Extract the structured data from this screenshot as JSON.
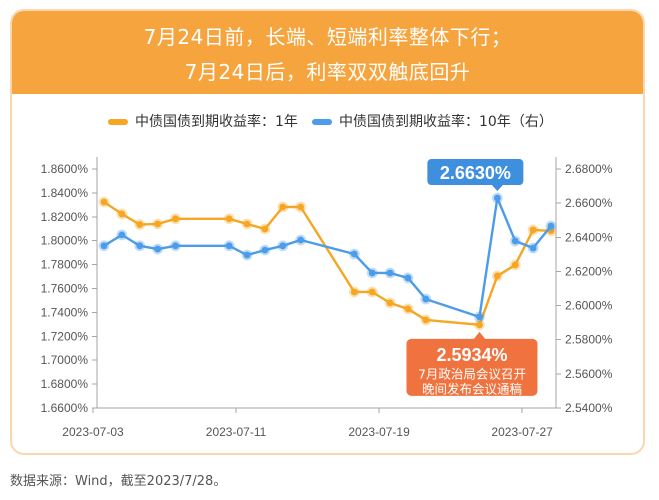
{
  "colors": {
    "header_background": "#F6A43E",
    "frame_border": "#FAD7AE"
  },
  "chart_data": {
    "type": "line",
    "title": [
      "7月24日前，长端、短端利率整体下行；",
      "7月24日后，利率双双触底回升"
    ],
    "x": [
      "2023-07-03",
      "2023-07-04",
      "2023-07-05",
      "2023-07-06",
      "2023-07-07",
      "2023-07-10",
      "2023-07-11",
      "2023-07-12",
      "2023-07-13",
      "2023-07-14",
      "2023-07-17",
      "2023-07-18",
      "2023-07-19",
      "2023-07-20",
      "2023-07-21",
      "2023-07-24",
      "2023-07-25",
      "2023-07-26",
      "2023-07-27",
      "2023-07-28"
    ],
    "x_ticks": [
      "2023-07-03",
      "2023-07-11",
      "2023-07-19",
      "2023-07-27"
    ],
    "y_left": {
      "range": [
        1.66,
        1.86
      ],
      "ticks": [
        "1.8600%",
        "1.8400%",
        "1.8200%",
        "1.8000%",
        "1.7800%",
        "1.7600%",
        "1.7400%",
        "1.7200%",
        "1.7000%",
        "1.6800%",
        "1.6600%"
      ]
    },
    "y_right": {
      "range": [
        2.54,
        2.68
      ],
      "ticks": [
        "2.6800%",
        "2.6600%",
        "2.6400%",
        "2.6200%",
        "2.6000%",
        "2.5800%",
        "2.5600%",
        "2.5400%"
      ]
    },
    "grid": false,
    "legend": "top-center",
    "series": [
      {
        "name": "中债国债到期收益率：1年",
        "y_axis": "left",
        "color": "#F5A623",
        "values": [
          1.8324,
          1.8224,
          1.8135,
          1.814,
          1.8183,
          1.8183,
          1.814,
          1.8098,
          1.8282,
          1.8282,
          1.7571,
          1.7571,
          1.7479,
          1.7429,
          1.7337,
          1.7296,
          1.7705,
          1.7797,
          1.809,
          1.8082
        ]
      },
      {
        "name": "中债国债到期收益率：10年（右）",
        "y_axis": "right",
        "color": "#4B9CE9",
        "values": [
          2.635,
          2.6414,
          2.635,
          2.6331,
          2.635,
          2.635,
          2.6296,
          2.6325,
          2.635,
          2.6384,
          2.6302,
          2.6191,
          2.6191,
          2.6162,
          2.6038,
          2.5934,
          2.663,
          2.6378,
          2.6337,
          2.6466
        ],
        "annotations": [
          {
            "x": "2023-07-25",
            "label": "2.6630%",
            "placement": "above",
            "color": "#3F8FDF"
          },
          {
            "x": "2023-07-24",
            "label": "2.5934%",
            "notes": [
              "7月政治局会议召开",
              "晚间发布会议通稿"
            ],
            "placement": "below",
            "color": "#F0733F"
          }
        ]
      }
    ]
  },
  "source": "数据来源：Wind，截至2023/7/28。"
}
